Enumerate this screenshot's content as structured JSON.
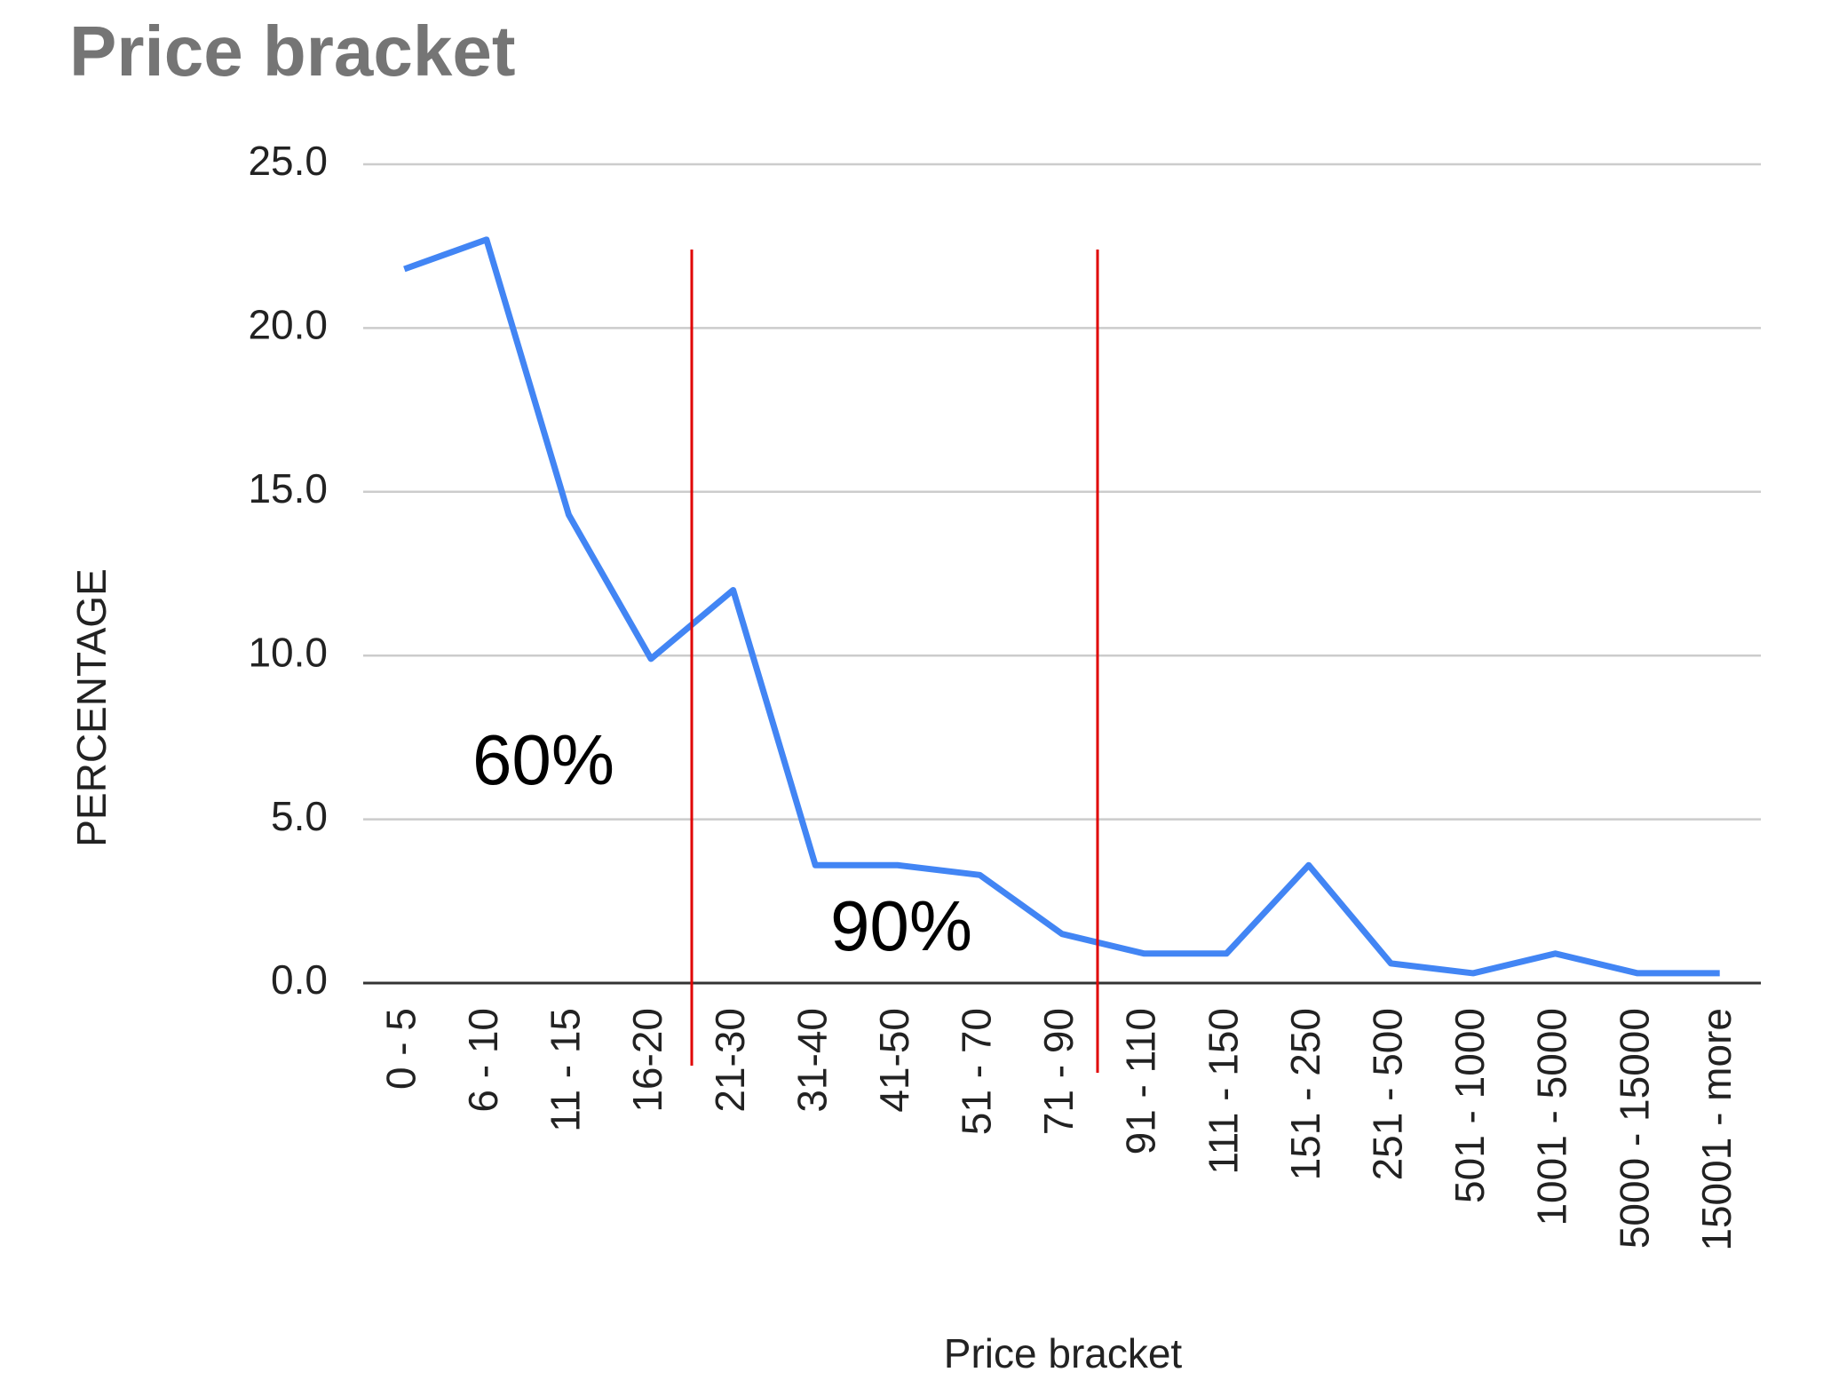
{
  "chart_data": {
    "type": "line",
    "title": "Price bracket",
    "x_label": "Price bracket",
    "y_label": "PERCENTAGE",
    "categories": [
      "0 - 5",
      "6 - 10",
      "11 - 15",
      "16-20",
      "21-30",
      "31-40",
      "41-50",
      "51 - 70",
      "71 - 90",
      "91 - 110",
      "111 - 150",
      "151 - 250",
      "251 - 500",
      "501 - 1000",
      "1001 - 5000",
      "5000 - 15000",
      "15001 - more"
    ],
    "values": [
      21.8,
      22.7,
      14.3,
      9.9,
      12.0,
      3.6,
      3.6,
      3.3,
      1.5,
      0.9,
      0.9,
      3.6,
      0.6,
      0.3,
      0.9,
      0.3,
      0.3
    ],
    "color": "#4285f4",
    "ylim": [
      0,
      25
    ],
    "yticks": [
      {
        "value": 0,
        "label": "0.0"
      },
      {
        "value": 5,
        "label": "5.0"
      },
      {
        "value": 10,
        "label": "10.0"
      },
      {
        "value": 15,
        "label": "15.0"
      },
      {
        "value": 20,
        "label": "20.0"
      },
      {
        "value": 25,
        "label": "25.0"
      }
    ],
    "grid": true,
    "annotations": [
      "60%",
      "90%"
    ]
  }
}
